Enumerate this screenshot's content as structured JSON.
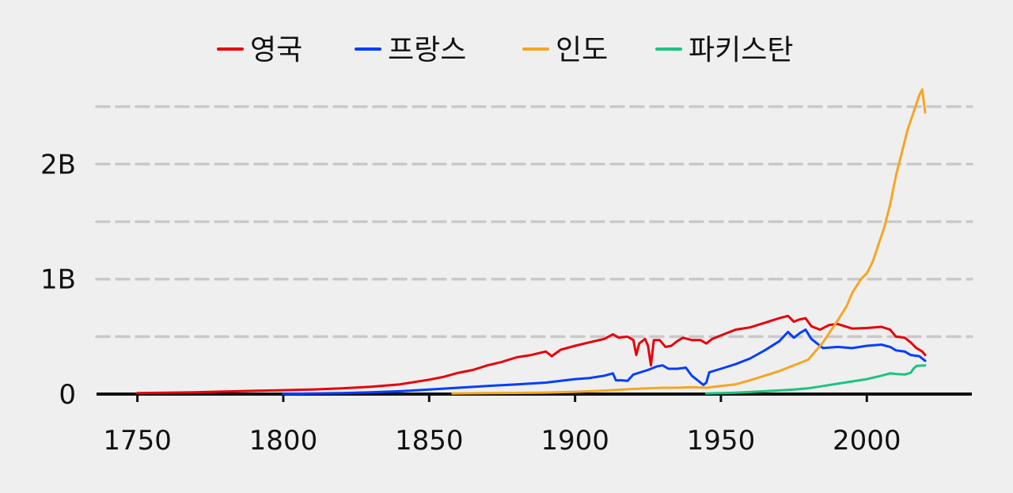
{
  "chart_data": {
    "type": "line",
    "title": "",
    "xlabel": "",
    "ylabel": "",
    "xlim": [
      1736,
      2036
    ],
    "ylim": [
      0,
      2650000000
    ],
    "grid": "horizontal-dashed",
    "legend_position": "top-center",
    "x_ticks": [
      1750,
      1800,
      1850,
      1900,
      1950,
      2000
    ],
    "x_tick_labels": [
      "1750",
      "1800",
      "1850",
      "1900",
      "1950",
      "2000"
    ],
    "y_ticks": [
      0,
      500000000,
      1000000000,
      1500000000,
      2000000000,
      2500000000
    ],
    "y_tick_labels": [
      "0",
      "",
      "1B",
      "",
      "2B",
      ""
    ],
    "series": [
      {
        "name": "영국",
        "color": "#e8000b",
        "points": [
          [
            1750,
            9000000
          ],
          [
            1760,
            12000000
          ],
          [
            1770,
            16000000
          ],
          [
            1780,
            22000000
          ],
          [
            1790,
            28000000
          ],
          [
            1800,
            34000000
          ],
          [
            1810,
            40000000
          ],
          [
            1820,
            50000000
          ],
          [
            1830,
            63000000
          ],
          [
            1840,
            85000000
          ],
          [
            1850,
            125000000
          ],
          [
            1855,
            150000000
          ],
          [
            1860,
            185000000
          ],
          [
            1865,
            210000000
          ],
          [
            1870,
            250000000
          ],
          [
            1875,
            280000000
          ],
          [
            1880,
            320000000
          ],
          [
            1885,
            340000000
          ],
          [
            1890,
            370000000
          ],
          [
            1892,
            330000000
          ],
          [
            1895,
            385000000
          ],
          [
            1900,
            420000000
          ],
          [
            1905,
            450000000
          ],
          [
            1910,
            480000000
          ],
          [
            1913,
            520000000
          ],
          [
            1915,
            490000000
          ],
          [
            1918,
            500000000
          ],
          [
            1920,
            470000000
          ],
          [
            1921,
            340000000
          ],
          [
            1922,
            440000000
          ],
          [
            1924,
            480000000
          ],
          [
            1925,
            420000000
          ],
          [
            1926,
            250000000
          ],
          [
            1927,
            470000000
          ],
          [
            1929,
            470000000
          ],
          [
            1931,
            410000000
          ],
          [
            1933,
            420000000
          ],
          [
            1935,
            460000000
          ],
          [
            1937,
            490000000
          ],
          [
            1940,
            470000000
          ],
          [
            1943,
            470000000
          ],
          [
            1945,
            440000000
          ],
          [
            1947,
            480000000
          ],
          [
            1950,
            510000000
          ],
          [
            1955,
            560000000
          ],
          [
            1960,
            580000000
          ],
          [
            1965,
            620000000
          ],
          [
            1970,
            660000000
          ],
          [
            1973,
            680000000
          ],
          [
            1975,
            630000000
          ],
          [
            1977,
            650000000
          ],
          [
            1979,
            660000000
          ],
          [
            1981,
            590000000
          ],
          [
            1984,
            560000000
          ],
          [
            1987,
            600000000
          ],
          [
            1990,
            610000000
          ],
          [
            1995,
            570000000
          ],
          [
            2000,
            575000000
          ],
          [
            2005,
            585000000
          ],
          [
            2008,
            560000000
          ],
          [
            2010,
            500000000
          ],
          [
            2013,
            490000000
          ],
          [
            2015,
            450000000
          ],
          [
            2017,
            400000000
          ],
          [
            2019,
            370000000
          ],
          [
            2020,
            340000000
          ]
        ]
      },
      {
        "name": "프랑스",
        "color": "#023eff",
        "points": [
          [
            1800,
            2000000
          ],
          [
            1810,
            5000000
          ],
          [
            1820,
            8000000
          ],
          [
            1830,
            15000000
          ],
          [
            1840,
            25000000
          ],
          [
            1850,
            40000000
          ],
          [
            1860,
            55000000
          ],
          [
            1870,
            70000000
          ],
          [
            1880,
            85000000
          ],
          [
            1890,
            100000000
          ],
          [
            1900,
            130000000
          ],
          [
            1905,
            140000000
          ],
          [
            1910,
            160000000
          ],
          [
            1913,
            180000000
          ],
          [
            1914,
            120000000
          ],
          [
            1916,
            120000000
          ],
          [
            1918,
            115000000
          ],
          [
            1920,
            170000000
          ],
          [
            1925,
            210000000
          ],
          [
            1928,
            240000000
          ],
          [
            1930,
            250000000
          ],
          [
            1932,
            220000000
          ],
          [
            1935,
            220000000
          ],
          [
            1938,
            230000000
          ],
          [
            1940,
            160000000
          ],
          [
            1942,
            120000000
          ],
          [
            1944,
            80000000
          ],
          [
            1945,
            100000000
          ],
          [
            1946,
            190000000
          ],
          [
            1950,
            220000000
          ],
          [
            1955,
            260000000
          ],
          [
            1960,
            310000000
          ],
          [
            1965,
            380000000
          ],
          [
            1970,
            460000000
          ],
          [
            1973,
            540000000
          ],
          [
            1975,
            490000000
          ],
          [
            1977,
            530000000
          ],
          [
            1979,
            560000000
          ],
          [
            1981,
            480000000
          ],
          [
            1985,
            400000000
          ],
          [
            1990,
            410000000
          ],
          [
            1995,
            400000000
          ],
          [
            2000,
            420000000
          ],
          [
            2005,
            430000000
          ],
          [
            2008,
            410000000
          ],
          [
            2010,
            380000000
          ],
          [
            2013,
            370000000
          ],
          [
            2015,
            340000000
          ],
          [
            2018,
            330000000
          ],
          [
            2020,
            290000000
          ]
        ]
      },
      {
        "name": "인도",
        "color": "#f5a623",
        "points": [
          [
            1858,
            5000000
          ],
          [
            1870,
            8000000
          ],
          [
            1880,
            10000000
          ],
          [
            1890,
            13000000
          ],
          [
            1900,
            20000000
          ],
          [
            1910,
            30000000
          ],
          [
            1920,
            45000000
          ],
          [
            1930,
            55000000
          ],
          [
            1935,
            55000000
          ],
          [
            1940,
            60000000
          ],
          [
            1945,
            55000000
          ],
          [
            1950,
            70000000
          ],
          [
            1955,
            85000000
          ],
          [
            1960,
            120000000
          ],
          [
            1965,
            160000000
          ],
          [
            1970,
            200000000
          ],
          [
            1975,
            250000000
          ],
          [
            1980,
            300000000
          ],
          [
            1985,
            450000000
          ],
          [
            1990,
            640000000
          ],
          [
            1993,
            760000000
          ],
          [
            1995,
            880000000
          ],
          [
            1998,
            1000000000
          ],
          [
            2000,
            1050000000
          ],
          [
            2002,
            1150000000
          ],
          [
            2004,
            1300000000
          ],
          [
            2006,
            1450000000
          ],
          [
            2008,
            1650000000
          ],
          [
            2010,
            1900000000
          ],
          [
            2012,
            2100000000
          ],
          [
            2014,
            2300000000
          ],
          [
            2016,
            2450000000
          ],
          [
            2018,
            2600000000
          ],
          [
            2019,
            2650000000
          ],
          [
            2020,
            2450000000
          ]
        ]
      },
      {
        "name": "파키스탄",
        "color": "#1ac481",
        "points": [
          [
            1945,
            5000000
          ],
          [
            1950,
            8000000
          ],
          [
            1955,
            12000000
          ],
          [
            1960,
            18000000
          ],
          [
            1965,
            25000000
          ],
          [
            1970,
            32000000
          ],
          [
            1975,
            40000000
          ],
          [
            1980,
            50000000
          ],
          [
            1985,
            70000000
          ],
          [
            1990,
            90000000
          ],
          [
            1995,
            110000000
          ],
          [
            2000,
            130000000
          ],
          [
            2005,
            160000000
          ],
          [
            2008,
            180000000
          ],
          [
            2010,
            175000000
          ],
          [
            2013,
            170000000
          ],
          [
            2015,
            185000000
          ],
          [
            2016,
            220000000
          ],
          [
            2017,
            245000000
          ],
          [
            2020,
            250000000
          ]
        ]
      }
    ]
  }
}
